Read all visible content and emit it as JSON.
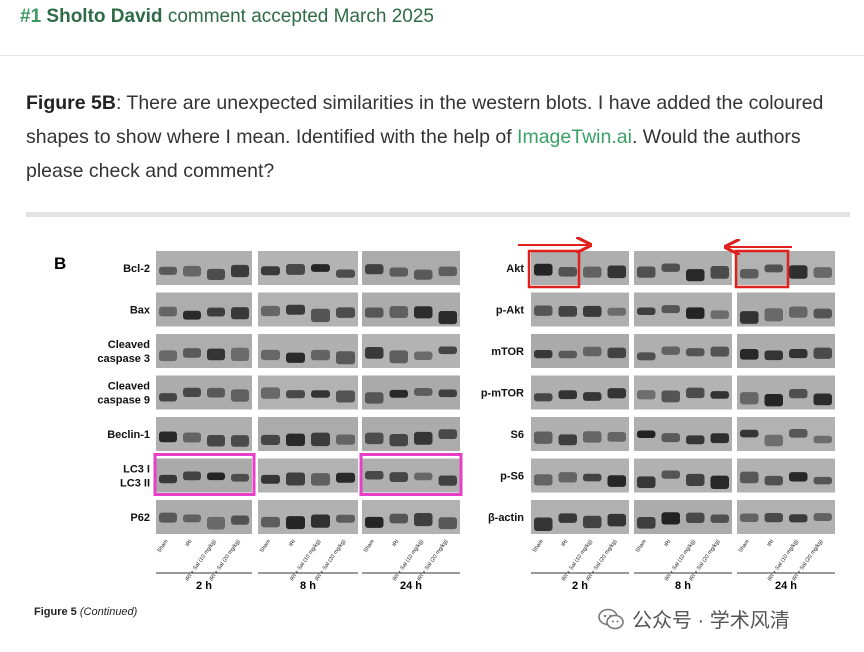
{
  "comment": {
    "number": "#1",
    "author": "Sholto David",
    "status": "comment accepted March 2025"
  },
  "paragraph": {
    "label": "Figure 5B",
    "text_before_link": ": There are unexpected similarities in the western blots. I have added the coloured shapes to show where I mean. Identified with the help of ",
    "link_text": "ImageTwin.ai",
    "text_after_link": ". Would the authors please check and comment?"
  },
  "figure": {
    "panel_label": "B",
    "left_rows": [
      "Bcl-2",
      "Bax",
      "Cleaved caspase 3",
      "Cleaved caspase 9",
      "Beclin-1",
      "LC3 I LC3 II",
      "P62"
    ],
    "right_rows": [
      "Akt",
      "p-Akt",
      "mTOR",
      "p-mTOR",
      "S6",
      "p-S6",
      "β-actin"
    ],
    "lanes": [
      "Sham",
      "IRI",
      "IRI + Sal (10 mg/kg)",
      "IRI + Sal (20 mg/kg)"
    ],
    "timepoints": [
      "2 h",
      "8 h",
      "24 h"
    ],
    "highlight_colors": {
      "magenta": "#e83fc8",
      "red": "#e0201c"
    }
  },
  "caption": {
    "label": "Figure 5",
    "suffix": "(Continued)"
  },
  "watermark": {
    "text": "公众号 · 学术风清",
    "icon": "wechat-icon"
  }
}
